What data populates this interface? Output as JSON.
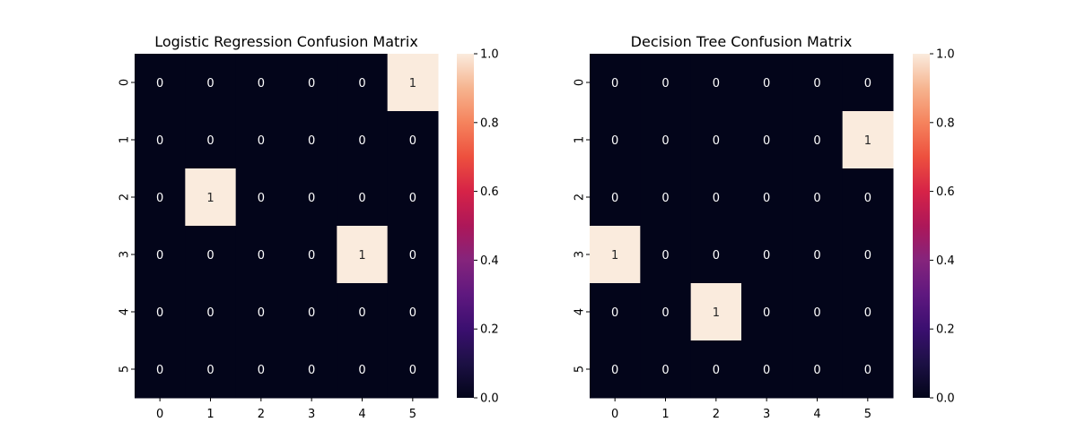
{
  "chart_data": [
    {
      "type": "heatmap",
      "title": "Logistic Regression Confusion Matrix",
      "x_tick_labels": [
        "0",
        "1",
        "2",
        "3",
        "4",
        "5"
      ],
      "y_tick_labels": [
        "0",
        "1",
        "2",
        "3",
        "4",
        "5"
      ],
      "matrix": [
        [
          0,
          0,
          0,
          0,
          0,
          1
        ],
        [
          0,
          0,
          0,
          0,
          0,
          0
        ],
        [
          0,
          1,
          0,
          0,
          0,
          0
        ],
        [
          0,
          0,
          0,
          0,
          1,
          0
        ],
        [
          0,
          0,
          0,
          0,
          0,
          0
        ],
        [
          0,
          0,
          0,
          0,
          0,
          0
        ]
      ],
      "annotations": [
        [
          "0",
          "0",
          "0",
          "0",
          "0",
          "1"
        ],
        [
          "0",
          "0",
          "0",
          "0",
          "0",
          "0"
        ],
        [
          "0",
          "1",
          "0",
          "0",
          "0",
          "0"
        ],
        [
          "0",
          "0",
          "0",
          "0",
          "1",
          "0"
        ],
        [
          "0",
          "0",
          "0",
          "0",
          "0",
          "0"
        ],
        [
          "0",
          "0",
          "0",
          "0",
          "0",
          "0"
        ]
      ],
      "colorbar": {
        "range": [
          0,
          1
        ],
        "tick_labels": [
          "0.0",
          "0.2",
          "0.4",
          "0.6",
          "0.8",
          "1.0"
        ],
        "colormap": "rocket"
      },
      "grid": false
    },
    {
      "type": "heatmap",
      "title": "Decision Tree Confusion Matrix",
      "x_tick_labels": [
        "0",
        "1",
        "2",
        "3",
        "4",
        "5"
      ],
      "y_tick_labels": [
        "0",
        "1",
        "2",
        "3",
        "4",
        "5"
      ],
      "matrix": [
        [
          0,
          0,
          0,
          0,
          0,
          0
        ],
        [
          0,
          0,
          0,
          0,
          0,
          1
        ],
        [
          0,
          0,
          0,
          0,
          0,
          0
        ],
        [
          1,
          0,
          0,
          0,
          0,
          0
        ],
        [
          0,
          0,
          1,
          0,
          0,
          0
        ],
        [
          0,
          0,
          0,
          0,
          0,
          0
        ]
      ],
      "annotations": [
        [
          "0",
          "0",
          "0",
          "0",
          "0",
          "0"
        ],
        [
          "0",
          "0",
          "0",
          "0",
          "0",
          "1"
        ],
        [
          "0",
          "0",
          "0",
          "0",
          "0",
          "0"
        ],
        [
          "1",
          "0",
          "0",
          "0",
          "0",
          "0"
        ],
        [
          "0",
          "0",
          "1",
          "0",
          "0",
          "0"
        ],
        [
          "0",
          "0",
          "0",
          "0",
          "0",
          "0"
        ]
      ],
      "colorbar": {
        "range": [
          0,
          1
        ],
        "tick_labels": [
          "0.0",
          "0.2",
          "0.4",
          "0.6",
          "0.8",
          "1.0"
        ],
        "colormap": "rocket"
      },
      "grid": false
    }
  ],
  "colors": {
    "low": "#03051a",
    "high": "#faebdd",
    "text_on_dark": "#ffffff",
    "text_on_light": "#262626"
  }
}
